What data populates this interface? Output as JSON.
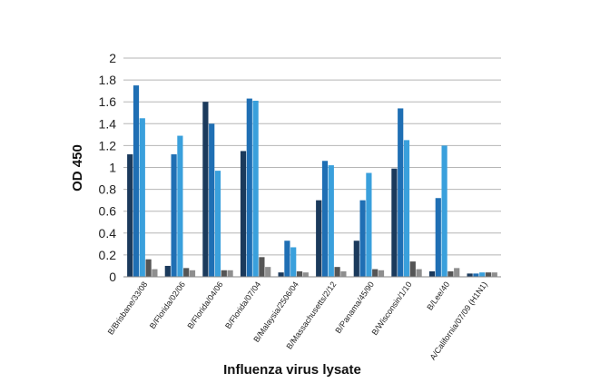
{
  "chart_data": {
    "type": "bar",
    "xlabel": "Influenza virus lysate",
    "ylabel": "OD 450",
    "ylim": [
      0,
      2
    ],
    "yticks": [
      "0",
      "0.2",
      "0.4",
      "0.6",
      "0.8",
      "1",
      "1.2",
      "1.4",
      "1.6",
      "1.8",
      "2"
    ],
    "grid": true,
    "legend": "none",
    "categories": [
      "B/Brisbane/33/08",
      "B/Florida/02/06",
      "B/Florida/04/06",
      "B/Florida/07/04",
      "B/Malaysia/2506/04",
      "B/Massachusetts/2/12",
      "B/Panama/45/90",
      "B/Wisconsin/1/10",
      "B/Lee/40",
      "A/California/07/09 (H1N1)"
    ],
    "series": [
      {
        "color": "#1b3a5c",
        "values": [
          1.12,
          0.1,
          1.6,
          1.15,
          0.04,
          0.7,
          0.33,
          0.99,
          0.05,
          0.03
        ]
      },
      {
        "color": "#1f6fb4",
        "values": [
          1.75,
          1.12,
          1.4,
          1.63,
          0.33,
          1.06,
          0.7,
          1.54,
          0.72,
          0.03
        ]
      },
      {
        "color": "#3aa0dc",
        "values": [
          1.45,
          1.29,
          0.97,
          1.61,
          0.27,
          1.02,
          0.95,
          1.25,
          1.2,
          0.04
        ]
      },
      {
        "color": "#555555",
        "values": [
          0.16,
          0.08,
          0.06,
          0.18,
          0.05,
          0.09,
          0.07,
          0.14,
          0.05,
          0.04
        ]
      },
      {
        "color": "#8e8e8e",
        "values": [
          0.07,
          0.06,
          0.06,
          0.09,
          0.04,
          0.05,
          0.06,
          0.07,
          0.08,
          0.04
        ]
      }
    ]
  }
}
